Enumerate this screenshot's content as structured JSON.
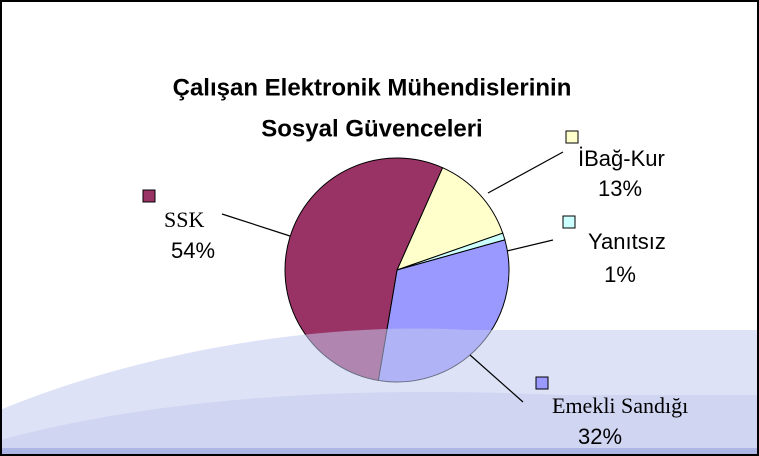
{
  "chart_data": {
    "type": "pie",
    "title": [
      "Çalışan Elektronik Mühendislerinin",
      "Sosyal Güvenceleri"
    ],
    "categories": [
      "İBağ-Kur",
      "Yanıtsız",
      "Emekli Sandığı",
      "SSK"
    ],
    "values": [
      13,
      1,
      32,
      54
    ],
    "value_labels": [
      "13%",
      "1%",
      "32%",
      "54%"
    ],
    "colors": [
      "#ffffcc",
      "#ccffff",
      "#9999ff",
      "#993366"
    ]
  }
}
